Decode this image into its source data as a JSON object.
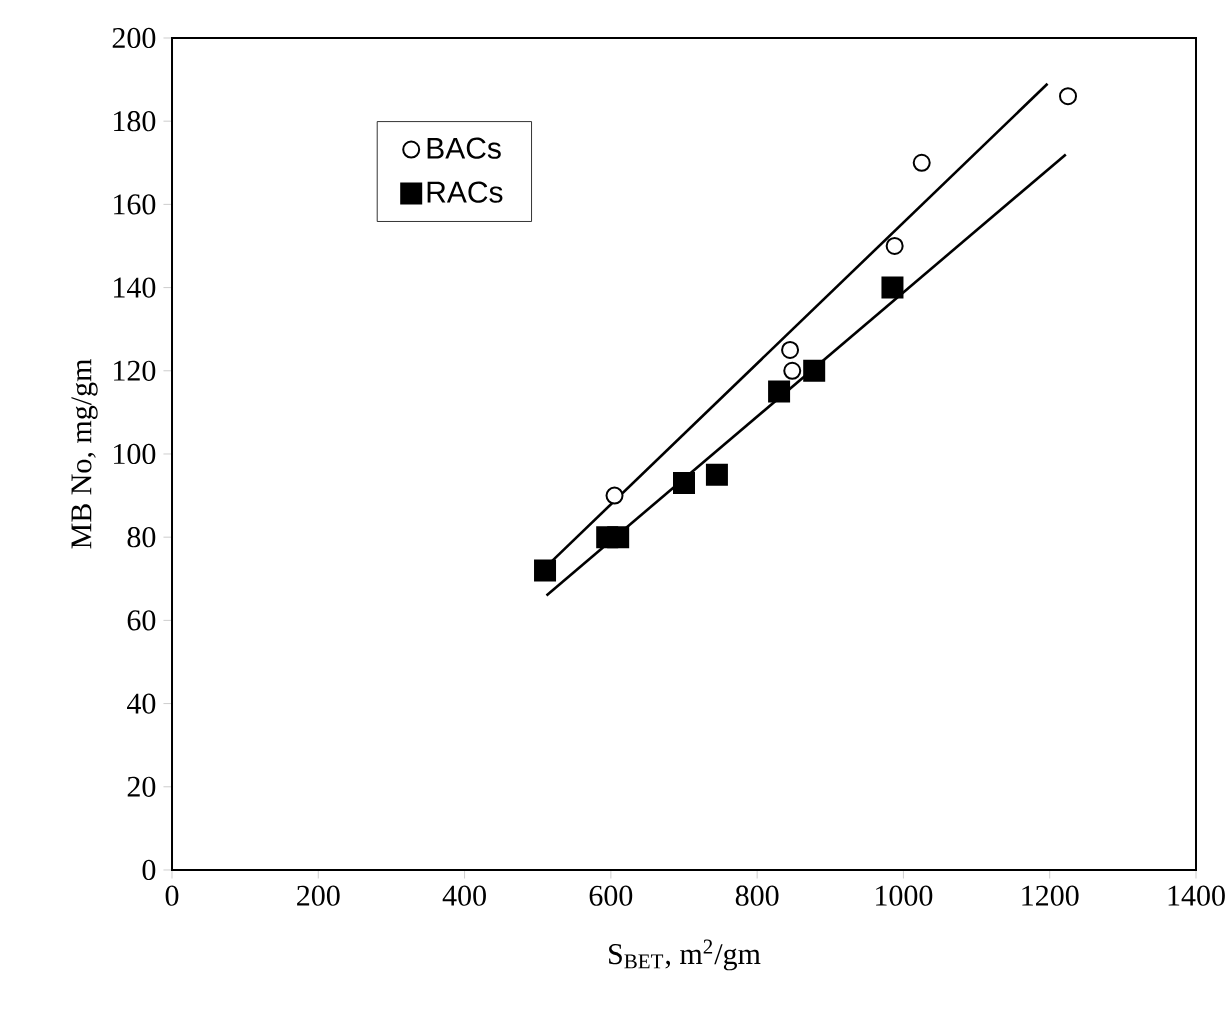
{
  "chart_data": {
    "type": "scatter",
    "xlabel": "S$_{BET}$, m$^{2}$/gm",
    "ylabel": "MB No, mg/gm",
    "xlim": [
      0,
      1400
    ],
    "ylim": [
      0,
      200
    ],
    "xticks": [
      0,
      200,
      400,
      600,
      800,
      1000,
      1200,
      1400
    ],
    "yticks": [
      0,
      20,
      40,
      60,
      80,
      100,
      120,
      140,
      160,
      180,
      200
    ],
    "legend": "top left",
    "grid": false,
    "series": [
      {
        "name": "BACs",
        "marker": "circle",
        "color": "#ffffff",
        "x": [
          605,
          845,
          848,
          988,
          1025,
          1225
        ],
        "values": [
          90,
          125,
          120,
          150,
          170,
          186
        ]
      },
      {
        "name": "RACs",
        "marker": "square",
        "color": "#000000",
        "x": [
          510,
          595,
          610,
          700,
          745,
          830,
          878,
          985
        ],
        "values": [
          72,
          80,
          80,
          93,
          95,
          115,
          120,
          140
        ]
      },
      {
        "type": "line",
        "line_style": "solid",
        "color": "#000000",
        "x": [
          518,
          1197
        ],
        "values": [
          74,
          189
        ]
      },
      {
        "type": "line",
        "line_style": "solid",
        "color": "#000000",
        "x": [
          512,
          1222
        ],
        "values": [
          66,
          172
        ]
      }
    ]
  }
}
